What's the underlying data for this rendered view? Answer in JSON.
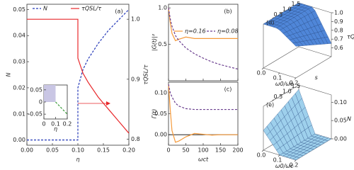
{
  "chart_data": [
    {
      "type": "line",
      "panel_label": "(a)",
      "xlabel": "η",
      "ylabel": "N",
      "y2label": "τQSL/τ",
      "x": [
        0,
        0.05,
        0.1,
        0.1,
        0.11,
        0.12,
        0.14,
        0.16,
        0.18,
        0.2
      ],
      "xlim": [
        0,
        0.2
      ],
      "xticks": [
        {
          "value": 0,
          "label": "0.00"
        },
        0.05,
        {
          "value": 0.1,
          "label": "0.10"
        },
        0.15,
        {
          "value": 0.2,
          "label": "0.20"
        }
      ],
      "ylim": [
        -0.002,
        0.052
      ],
      "yticks": [
        {
          "value": 0,
          "label": "0.00"
        },
        0.01,
        0.02,
        0.03,
        0.04,
        0.05
      ],
      "y2lim": [
        0.79,
        1.025
      ],
      "y2ticks": [
        0.8,
        0.9,
        {
          "value": 1,
          "label": "1.0"
        }
      ],
      "series": [
        {
          "name": "N",
          "color": "#2438b8",
          "style": "dashed",
          "values": [
            0,
            0,
            0,
            0.02,
            0.027,
            0.031,
            0.037,
            0.042,
            0.046,
            0.05
          ]
        },
        {
          "name": "τQSL/τ",
          "color": "#e8282b",
          "style": "solid",
          "axis": "y2",
          "values": [
            1,
            1,
            1,
            0.935,
            0.91,
            0.895,
            0.87,
            0.85,
            0.83,
            0.81
          ]
        }
      ]
    },
    {
      "type": "line",
      "xlabel": "η",
      "x": [
        0.1,
        0.2
      ],
      "xlim": [
        0,
        0.2
      ],
      "xticks": [
        0,
        0.1,
        0.2
      ],
      "ylim": [
        -0.07,
        0.07
      ],
      "yticks": [
        -0.05,
        0,
        0.05
      ],
      "series": [
        {
          "color": "#3a9a3a",
          "style": "dashed",
          "values": [
            0,
            -0.05
          ]
        }
      ]
    },
    {
      "type": "line",
      "panel_label": "(b)",
      "ylabel": "|G(t)|²",
      "x": [
        0,
        5,
        10,
        20,
        30,
        50,
        75,
        100,
        125,
        150,
        175,
        200
      ],
      "xlim": [
        0,
        200
      ],
      "xticks": [
        0,
        50,
        100,
        150,
        200
      ],
      "ylim": [
        0,
        1.05
      ],
      "yticks": [
        0.5,
        {
          "value": 1,
          "label": "1.0"
        }
      ],
      "series": [
        {
          "name": "η=0.16",
          "color": "#f59a3b",
          "style": "solid",
          "values": [
            1,
            0.8,
            0.65,
            0.55,
            0.57,
            0.6,
            0.58,
            0.58,
            0.58,
            0.58,
            0.58,
            0.58
          ]
        },
        {
          "name": "η=0.08",
          "color": "#6b3f8f",
          "style": "dashed",
          "values": [
            1,
            0.85,
            0.75,
            0.62,
            0.55,
            0.45,
            0.37,
            0.31,
            0.26,
            0.22,
            0.19,
            0.16
          ]
        }
      ]
    },
    {
      "type": "line",
      "panel_label": "(c)",
      "xlabel": "ωct",
      "ylabel": "Γ(t)",
      "x": [
        0,
        5,
        10,
        20,
        30,
        50,
        75,
        100,
        125,
        150,
        175,
        200
      ],
      "xlim": [
        0,
        200
      ],
      "xticks": [
        0,
        50,
        100,
        150,
        200
      ],
      "ylim": [
        -0.025,
        0.125
      ],
      "yticks": [
        {
          "value": 0,
          "label": "0.00"
        },
        0.05,
        {
          "value": 0.1,
          "label": "0.10"
        }
      ],
      "series": [
        {
          "color": "#f59a3b",
          "style": "solid",
          "values": [
            0.12,
            0.06,
            0.01,
            -0.018,
            -0.015,
            -0.005,
            0.003,
            0.001,
            -0.001,
            0,
            0,
            0
          ]
        },
        {
          "color": "#6b3f8f",
          "style": "dashed",
          "values": [
            0.12,
            0.1,
            0.09,
            0.075,
            0.068,
            0.062,
            0.06,
            0.06,
            0.06,
            0.06,
            0.06,
            0.06
          ]
        }
      ]
    },
    {
      "type": "surface3d",
      "panel_label": "(d)",
      "xlabel": "ω0/ωc",
      "ylabel": "s",
      "zlabel": "τQSL/τ",
      "color": "#4f86d8",
      "xlim": [
        0,
        0.2
      ],
      "xticks": [
        {
          "value": 0,
          "label": "0.0"
        },
        0.1,
        0.2
      ],
      "ylim": [
        0,
        2
      ],
      "yticks": [
        0.5,
        {
          "value": 1,
          "label": "1.0"
        },
        1.5
      ],
      "zlim": [
        0.5,
        1
      ],
      "zticks": [
        0.6,
        0.7,
        0.8,
        0.9,
        {
          "value": 1,
          "label": "1.0"
        }
      ]
    },
    {
      "type": "surface3d",
      "panel_label": "(e)",
      "xlabel": "ω0/ωc",
      "ylabel": "s",
      "zlabel": "N",
      "color": "#9ed0ec",
      "xlim": [
        0,
        0.2
      ],
      "xticks": [
        {
          "value": 0,
          "label": "0.0"
        },
        0.1,
        0.2
      ],
      "ylim": [
        0,
        2
      ],
      "yticks": [
        0.5,
        {
          "value": 1,
          "label": "1.0"
        },
        1.5
      ],
      "zlim": [
        0,
        0.12
      ],
      "zticks": [
        {
          "value": 0,
          "label": "0.00"
        },
        0.05,
        {
          "value": 0.1,
          "label": "0.10"
        }
      ]
    }
  ]
}
